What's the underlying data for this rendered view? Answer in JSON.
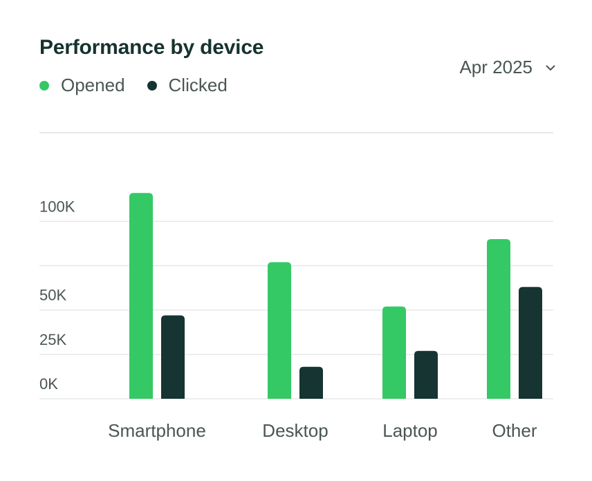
{
  "header": {
    "title": "Performance by device",
    "period_label": "Apr 2025"
  },
  "colors": {
    "opened": "#34c965",
    "clicked": "#163431",
    "grid": "#e6e8e7",
    "text": "#4a5653",
    "title": "#16332e"
  },
  "icons": {
    "period_dropdown": "chevron-down-icon"
  },
  "chart_data": {
    "type": "bar",
    "categories": [
      "Smartphone",
      "Desktop",
      "Laptop",
      "Other"
    ],
    "series": [
      {
        "name": "Opened",
        "values": [
          116,
          77,
          52,
          90
        ]
      },
      {
        "name": "Clicked",
        "values": [
          47,
          18,
          27,
          63
        ]
      }
    ],
    "y_ticks": [
      {
        "value": 0,
        "label": "0K"
      },
      {
        "value": 25,
        "label": "25K"
      },
      {
        "value": 50,
        "label": "50K"
      },
      {
        "value": 100,
        "label": "100K"
      }
    ],
    "grid_values": [
      0,
      25,
      50,
      75,
      100
    ],
    "ylim": [
      0,
      150
    ],
    "grid": true,
    "legend_position": "top-left",
    "xlabel": "",
    "ylabel": ""
  }
}
